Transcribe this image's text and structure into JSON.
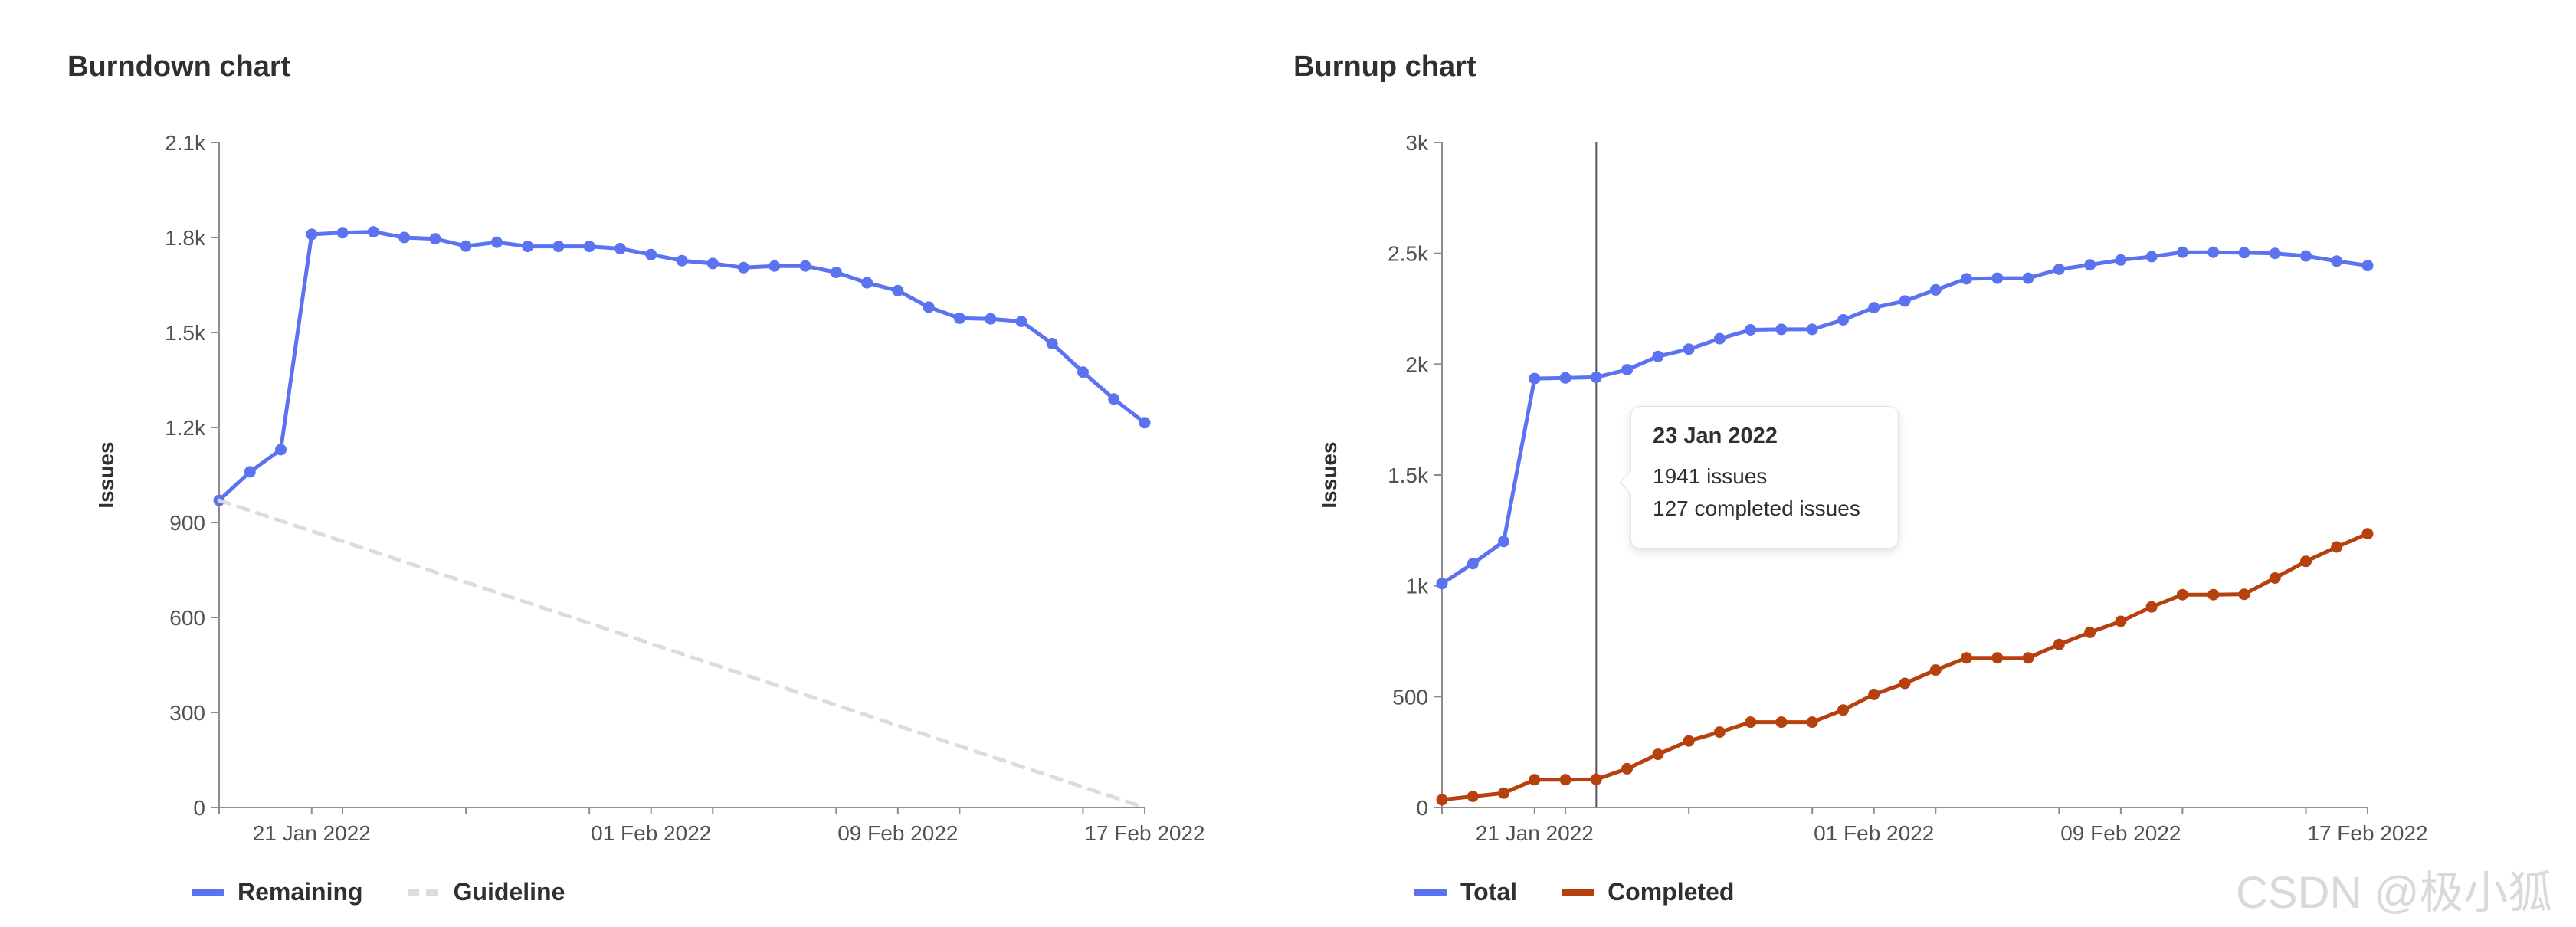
{
  "chart_data": [
    {
      "type": "line",
      "title": "Burndown chart",
      "xlabel": "",
      "ylabel": "Issues",
      "ylim": [
        0,
        2100
      ],
      "yticks": [
        0,
        300,
        600,
        900,
        "1.2k",
        "1.5k",
        "1.8k",
        "2.1k"
      ],
      "x_tick_labels": [
        "21 Jan 2022",
        "01 Feb 2022",
        "09 Feb 2022",
        "17 Feb 2022"
      ],
      "x_start": "2022-01-18",
      "x_end": "2022-02-17",
      "grid": false,
      "legend": "bottom",
      "series": [
        {
          "name": "Remaining",
          "color": "#5b73f0",
          "dates": [
            "2022-01-18",
            "2022-01-19",
            "2022-01-20",
            "2022-01-21",
            "2022-01-22",
            "2022-01-23",
            "2022-01-24",
            "2022-01-25",
            "2022-01-26",
            "2022-01-27",
            "2022-01-28",
            "2022-01-29",
            "2022-01-30",
            "2022-01-31",
            "2022-02-01",
            "2022-02-02",
            "2022-02-03",
            "2022-02-04",
            "2022-02-05",
            "2022-02-06",
            "2022-02-07",
            "2022-02-08",
            "2022-02-09",
            "2022-02-10",
            "2022-02-11",
            "2022-02-12",
            "2022-02-13",
            "2022-02-14",
            "2022-02-15",
            "2022-02-16",
            "2022-02-17"
          ],
          "values": [
            970,
            1060,
            1130,
            1810,
            1815,
            1818,
            1800,
            1796,
            1773,
            1785,
            1772,
            1772,
            1772,
            1765,
            1746,
            1727,
            1718,
            1705,
            1710,
            1710,
            1690,
            1657,
            1632,
            1580,
            1545,
            1543,
            1535,
            1465,
            1375,
            1290,
            1215
          ]
        },
        {
          "name": "Guideline",
          "color": "#dcdcdc",
          "dashed": true,
          "dates": [
            "2022-01-18",
            "2022-02-17"
          ],
          "values": [
            970,
            0
          ]
        }
      ]
    },
    {
      "type": "line",
      "title": "Burnup chart",
      "xlabel": "",
      "ylabel": "Issues",
      "ylim": [
        0,
        3000
      ],
      "yticks": [
        0,
        500,
        "1k",
        "1.5k",
        "2k",
        "2.5k",
        "3k"
      ],
      "x_tick_labels": [
        "21 Jan 2022",
        "01 Feb 2022",
        "09 Feb 2022",
        "17 Feb 2022"
      ],
      "x_start": "2022-01-18",
      "x_end": "2022-02-17",
      "grid": false,
      "legend": "bottom",
      "series": [
        {
          "name": "Total",
          "color": "#5b73f0",
          "dates": [
            "2022-01-18",
            "2022-01-19",
            "2022-01-20",
            "2022-01-21",
            "2022-01-22",
            "2022-01-23",
            "2022-01-24",
            "2022-01-25",
            "2022-01-26",
            "2022-01-27",
            "2022-01-28",
            "2022-01-29",
            "2022-01-30",
            "2022-01-31",
            "2022-02-01",
            "2022-02-02",
            "2022-02-03",
            "2022-02-04",
            "2022-02-05",
            "2022-02-06",
            "2022-02-07",
            "2022-02-08",
            "2022-02-09",
            "2022-02-10",
            "2022-02-11",
            "2022-02-12",
            "2022-02-13",
            "2022-02-14",
            "2022-02-15",
            "2022-02-16",
            "2022-02-17"
          ],
          "values": [
            1010,
            1100,
            1200,
            1935,
            1938,
            1941,
            1975,
            2035,
            2068,
            2115,
            2155,
            2157,
            2157,
            2200,
            2255,
            2285,
            2335,
            2385,
            2388,
            2388,
            2428,
            2448,
            2470,
            2485,
            2505,
            2505,
            2503,
            2500,
            2488,
            2465,
            2445
          ]
        },
        {
          "name": "Completed",
          "color": "#b7410e",
          "dates": [
            "2022-01-18",
            "2022-01-19",
            "2022-01-20",
            "2022-01-21",
            "2022-01-22",
            "2022-01-23",
            "2022-01-24",
            "2022-01-25",
            "2022-01-26",
            "2022-01-27",
            "2022-01-28",
            "2022-01-29",
            "2022-01-30",
            "2022-01-31",
            "2022-02-01",
            "2022-02-02",
            "2022-02-03",
            "2022-02-04",
            "2022-02-05",
            "2022-02-06",
            "2022-02-07",
            "2022-02-08",
            "2022-02-09",
            "2022-02-10",
            "2022-02-11",
            "2022-02-12",
            "2022-02-13",
            "2022-02-14",
            "2022-02-15",
            "2022-02-16",
            "2022-02-17"
          ],
          "values": [
            35,
            50,
            65,
            125,
            125,
            127,
            175,
            240,
            300,
            340,
            385,
            385,
            385,
            440,
            510,
            560,
            620,
            675,
            675,
            675,
            735,
            790,
            840,
            905,
            960,
            960,
            962,
            1035,
            1110,
            1175,
            1235
          ]
        }
      ],
      "hover": {
        "date": "2022-01-23",
        "tooltip_title": "23 Jan 2022",
        "tooltip_lines": [
          "1941 issues",
          "127 completed issues"
        ]
      }
    }
  ],
  "watermark": "CSDN @极小狐"
}
